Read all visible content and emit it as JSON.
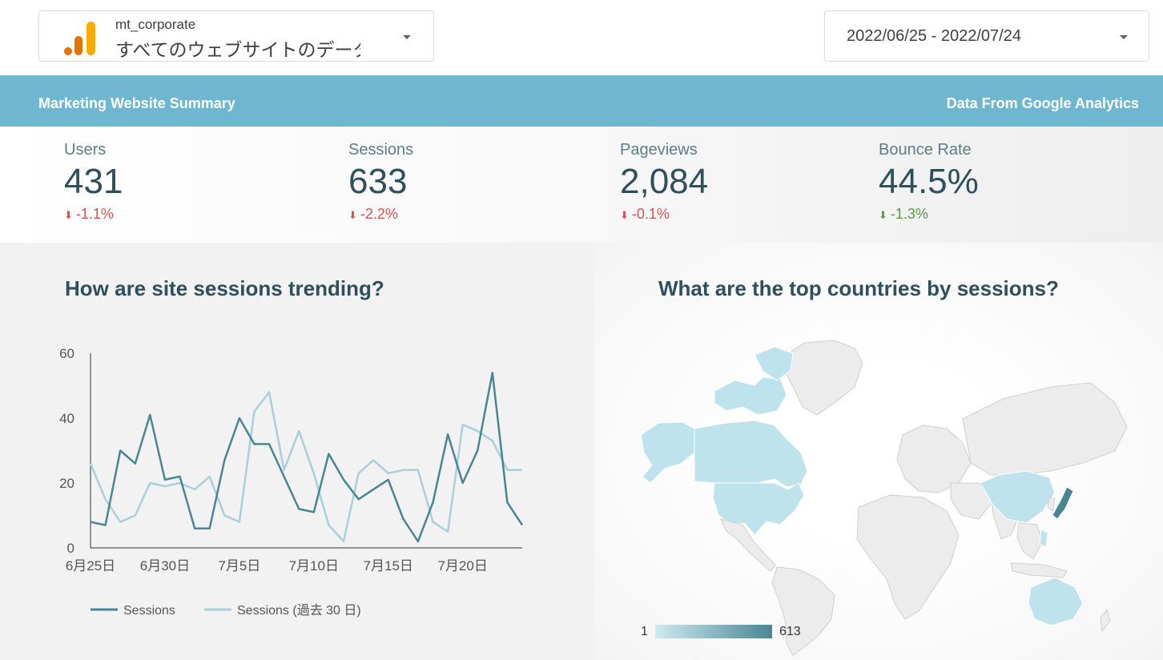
{
  "account": {
    "name": "mt_corporate",
    "property": "すべてのウェブサイトのデータ"
  },
  "date_range": "2022/06/25 - 2022/07/24",
  "banner": {
    "left": "Marketing Website Summary",
    "right": "Data From Google Analytics"
  },
  "kpis": [
    {
      "label": "Users",
      "value": "431",
      "change": "-1.1%",
      "status": "bad"
    },
    {
      "label": "Sessions",
      "value": "633",
      "change": "-2.2%",
      "status": "bad"
    },
    {
      "label": "Pageviews",
      "value": "2,084",
      "change": "-0.1%",
      "status": "bad"
    },
    {
      "label": "Bounce Rate",
      "value": "44.5%",
      "change": "-1.3%",
      "status": "good"
    }
  ],
  "colors": {
    "series_current": "#4a8594",
    "series_previous": "#a9d0d9",
    "bad": "#d9534f",
    "good": "#5a9a47",
    "banner": "#6fb7d1"
  },
  "chart_data": [
    {
      "type": "line",
      "title": "How are site sessions trending?",
      "x": [
        "6月25日",
        "6月26日",
        "6月27日",
        "6月28日",
        "6月29日",
        "6月30日",
        "7月1日",
        "7月2日",
        "7月3日",
        "7月4日",
        "7月5日",
        "7月6日",
        "7月7日",
        "7月8日",
        "7月9日",
        "7月10日",
        "7月11日",
        "7月12日",
        "7月13日",
        "7月14日",
        "7月15日",
        "7月16日",
        "7月17日",
        "7月18日",
        "7月19日",
        "7月20日",
        "7月21日",
        "7月22日",
        "7月23日",
        "7月24日"
      ],
      "x_tick_labels": [
        "6月25日",
        "6月30日",
        "7月5日",
        "7月10日",
        "7月15日",
        "7月20日"
      ],
      "x_tick_indices": [
        0,
        5,
        10,
        15,
        20,
        25
      ],
      "y_ticks": [
        0,
        20,
        40,
        60
      ],
      "ylim": [
        0,
        60
      ],
      "legend_position": "bottom-left",
      "series": [
        {
          "name": "Sessions",
          "values": [
            8,
            7,
            30,
            26,
            41,
            21,
            22,
            6,
            6,
            27,
            40,
            32,
            32,
            22,
            12,
            11,
            29,
            21,
            15,
            18,
            21,
            9,
            2,
            14,
            35,
            20,
            30,
            54,
            14,
            7
          ]
        },
        {
          "name": "Sessions (過去 30 日)",
          "values": [
            26,
            15,
            8,
            10,
            20,
            19,
            20,
            18,
            22,
            10,
            8,
            42,
            48,
            24,
            36,
            23,
            7,
            2,
            23,
            27,
            23,
            24,
            24,
            8,
            5,
            38,
            36,
            33,
            24,
            24
          ]
        }
      ]
    },
    {
      "type": "map",
      "title": "What are the top countries by sessions?",
      "scale_min": "1",
      "scale_max": "613",
      "highlighted_regions": [
        "Japan",
        "United States",
        "Canada",
        "China",
        "Australia",
        "Philippines"
      ]
    }
  ]
}
